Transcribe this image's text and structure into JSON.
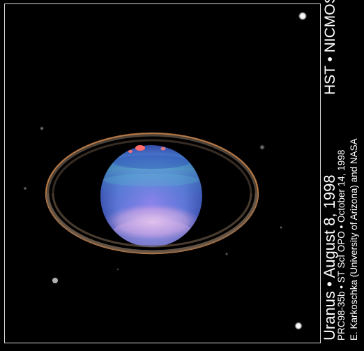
{
  "image": {
    "subject": "Uranus",
    "colors": {
      "background": "#000000",
      "frame": "#d8d8d8",
      "text": "#ffffff",
      "ring_outer": "#c8824a",
      "ring_inner": "#7a6a5a",
      "planet_top": "#3f6fd0",
      "planet_band": "#4aa8c8",
      "planet_haze": "#f0c8e8",
      "cloud_spot": "#ff5a5a"
    }
  },
  "caption": {
    "title": "Uranus • August 8, 1998",
    "release": "PRC98-35b • ST ScI OPO • October 14, 1998",
    "credit": "E. Karkoschka (University of Arizona) and NASA",
    "instrument": "HST • NICMOS"
  }
}
